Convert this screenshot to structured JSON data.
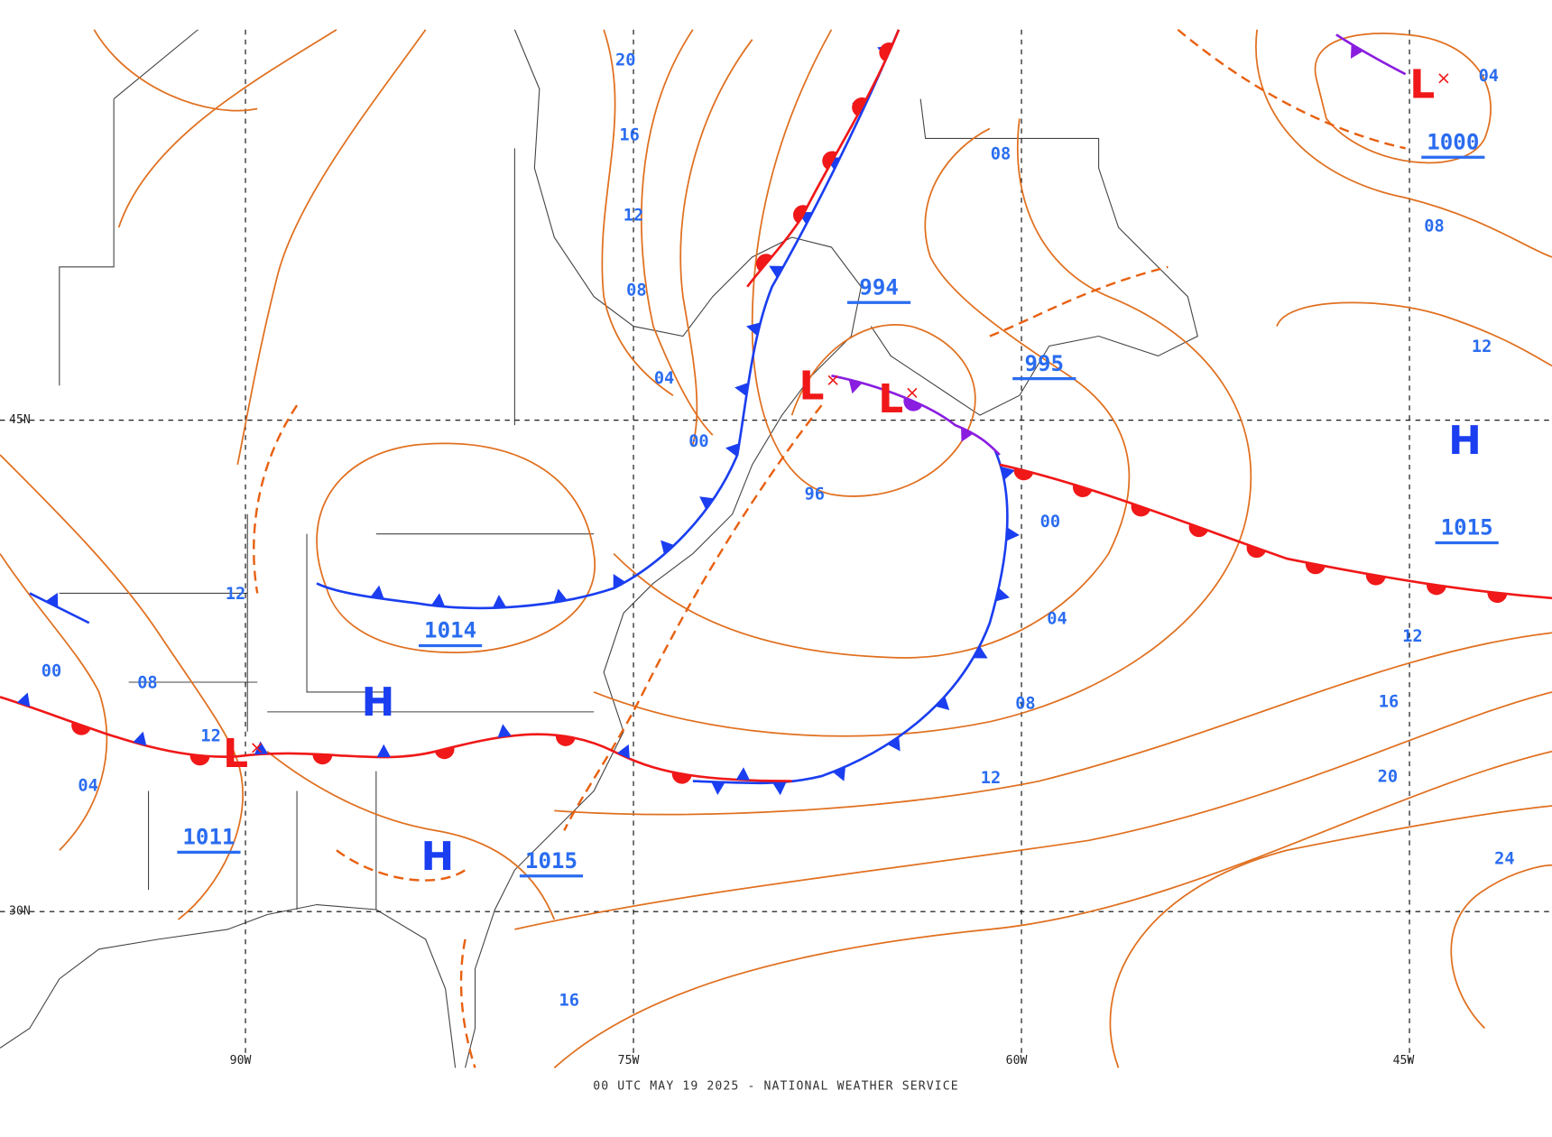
{
  "footer": "00 UTC MAY 19 2025 - NATIONAL WEATHER SERVICE",
  "latitude_labels": [
    "45N",
    "30N"
  ],
  "longitude_labels": [
    "90W",
    "75W",
    "60W",
    "45W"
  ],
  "pressure_centers": [
    {
      "symbol": "L",
      "value": "1000"
    },
    {
      "symbol": "H",
      "value": "1015"
    },
    {
      "symbol": "L",
      "value": "994"
    },
    {
      "symbol": "L",
      "value": "995"
    },
    {
      "symbol": "H",
      "value": "1014"
    },
    {
      "symbol": "L",
      "value": "1011"
    },
    {
      "symbol": "H",
      "value": "1015"
    }
  ],
  "isobar_labels": [
    "20",
    "16",
    "12",
    "08",
    "04",
    "00",
    "96",
    "00",
    "04",
    "08",
    "12",
    "12",
    "16",
    "20",
    "24",
    "12",
    "08",
    "04",
    "08",
    "12",
    "08",
    "00",
    "04",
    "12",
    "16"
  ]
}
